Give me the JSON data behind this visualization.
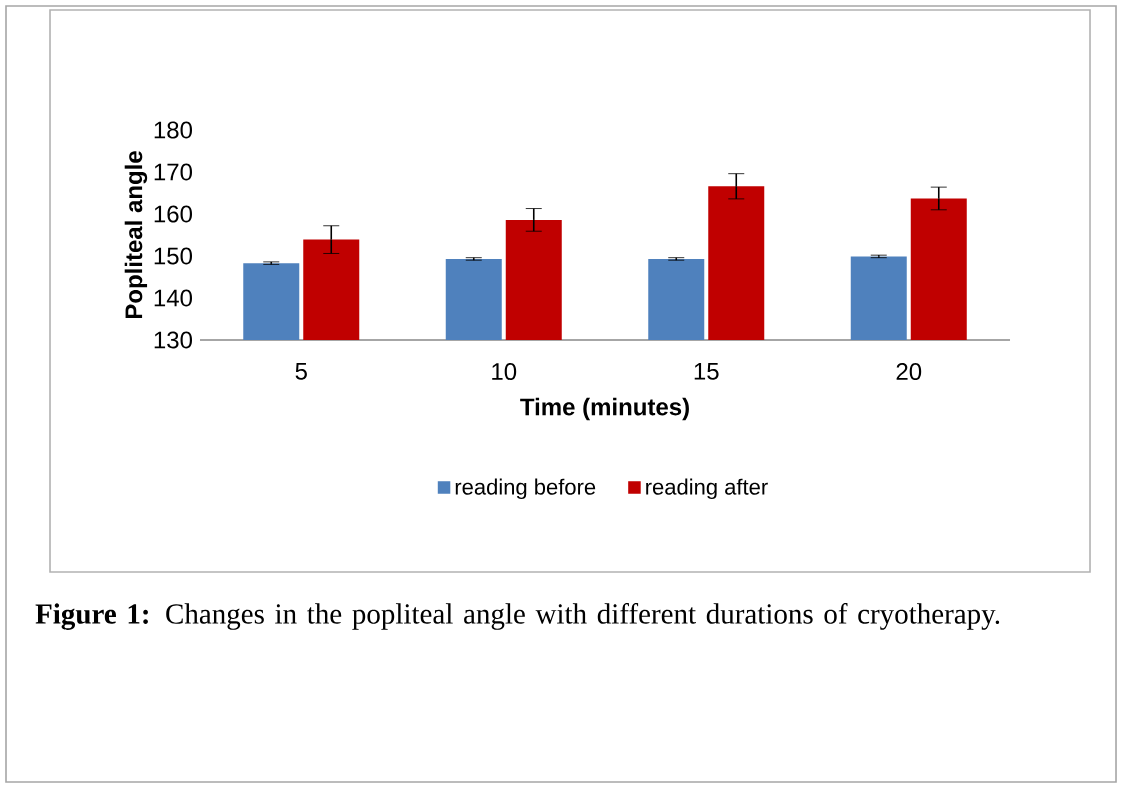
{
  "chart_data": {
    "type": "bar",
    "xlabel": "Time (minutes)",
    "ylabel": "Popliteal angle",
    "categories": [
      "5",
      "10",
      "15",
      "20"
    ],
    "series": [
      {
        "name": "reading before",
        "color": "#4f81bd",
        "values": [
          148.3,
          149.3,
          149.3,
          149.9
        ],
        "errors": [
          0.3,
          0.3,
          0.3,
          0.3
        ]
      },
      {
        "name": "reading after",
        "color": "#c00000",
        "values": [
          153.9,
          158.6,
          166.6,
          163.7
        ],
        "errors": [
          3.3,
          2.7,
          3.0,
          2.7
        ]
      }
    ],
    "ylim": [
      130,
      180
    ],
    "yticks": [
      130,
      140,
      150,
      160,
      170,
      180
    ],
    "legend": "bottom",
    "annotations": [
      "**Figure 1:** Changes in the popliteal angle with different durations of cryotherapy."
    ]
  }
}
